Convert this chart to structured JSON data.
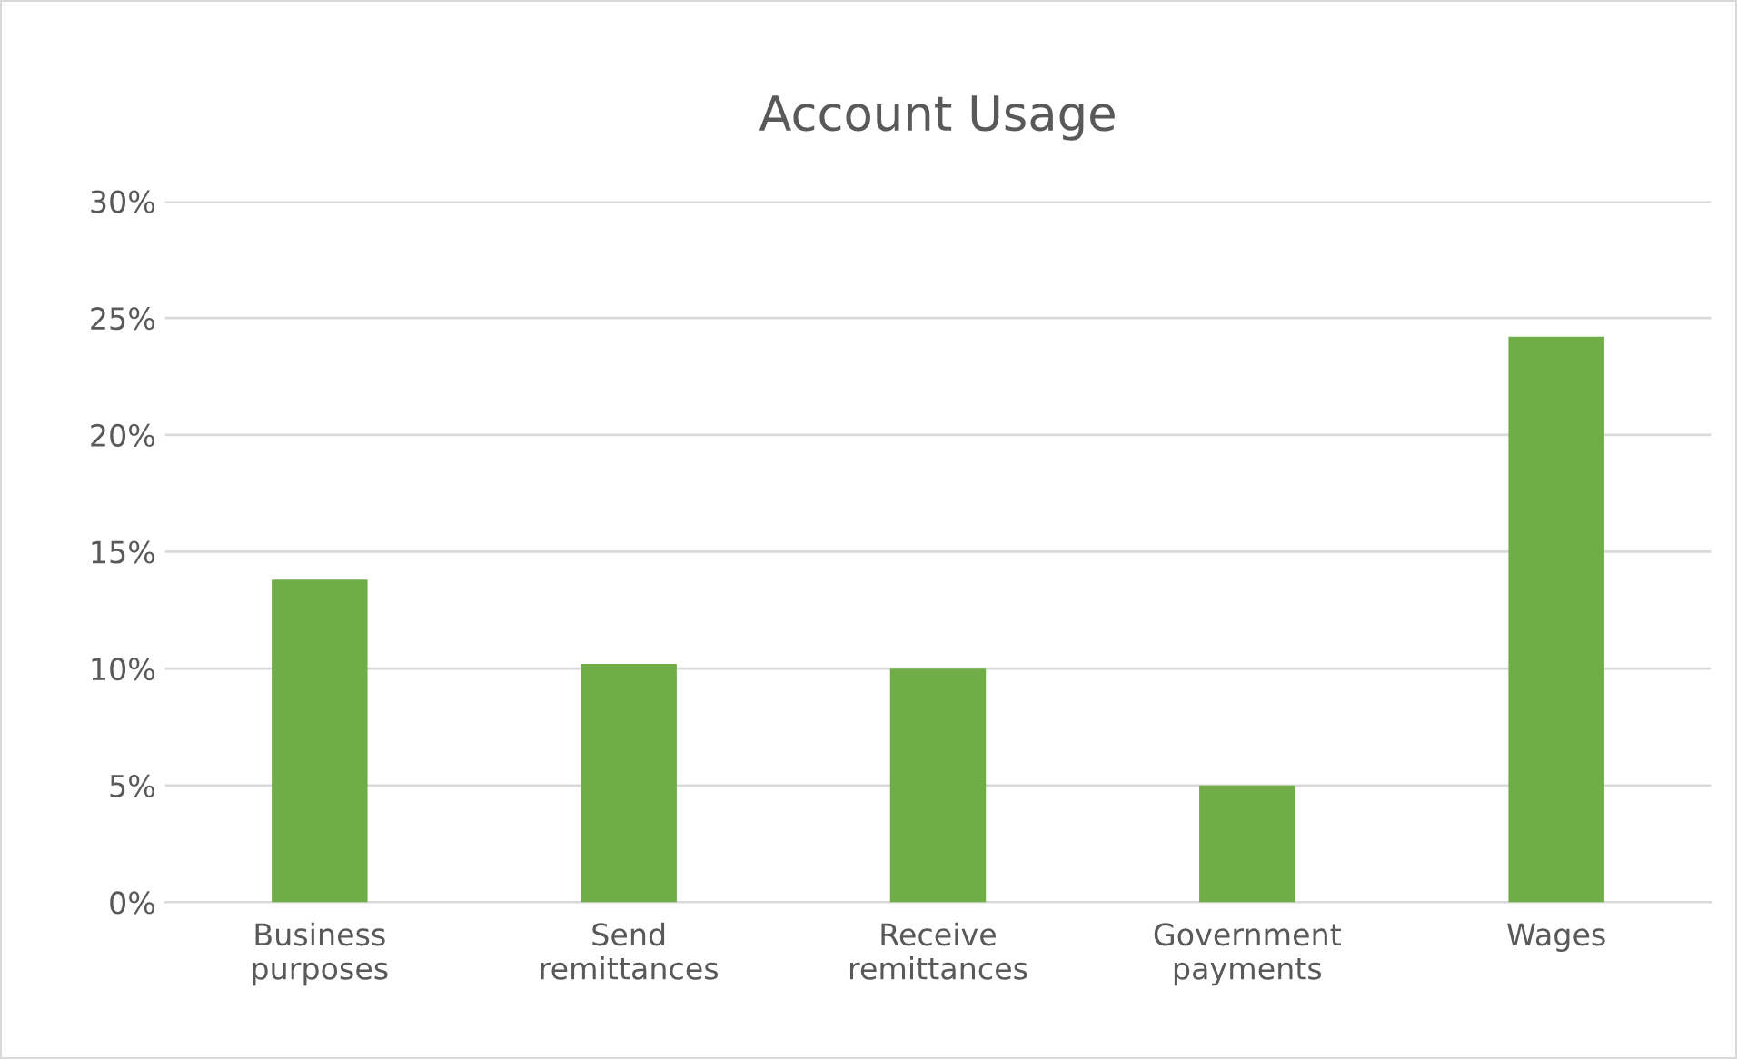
{
  "chart_data": {
    "type": "bar",
    "title": "Account Usage",
    "categories": [
      "Business\npurposes",
      "Send\nremittances",
      "Receive\nremittances",
      "Government\npayments",
      "Wages"
    ],
    "values": [
      13.8,
      10.2,
      10.0,
      5.0,
      24.2
    ],
    "color": "#70ad47",
    "ylim": [
      0,
      30
    ],
    "yticks": [
      {
        "value": 0,
        "label": "0%"
      },
      {
        "value": 5,
        "label": "5%"
      },
      {
        "value": 10,
        "label": "10%"
      },
      {
        "value": 15,
        "label": "15%"
      },
      {
        "value": 20,
        "label": "20%"
      },
      {
        "value": 25,
        "label": "25%"
      },
      {
        "value": 30,
        "label": "30%"
      }
    ],
    "grid": "y"
  }
}
